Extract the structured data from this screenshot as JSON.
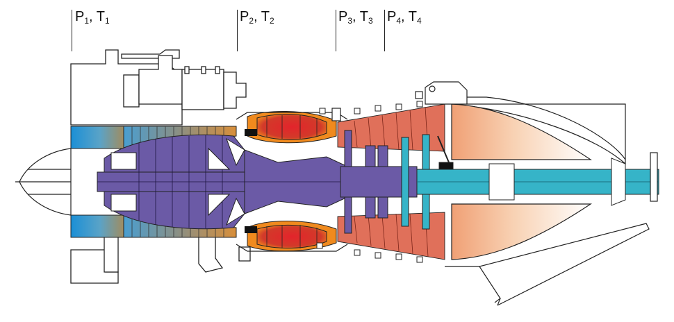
{
  "figure": {
    "stations": [
      {
        "p": "P",
        "p_sub": "1",
        "t": "T",
        "t_sub": "1",
        "sep": ", "
      },
      {
        "p": "P",
        "p_sub": "2",
        "t": "T",
        "t_sub": "2",
        "sep": ", "
      },
      {
        "p": "P",
        "p_sub": "3",
        "t": "T",
        "t_sub": "3",
        "sep": ", "
      },
      {
        "p": "P",
        "p_sub": "4",
        "t": "T",
        "t_sub": "4",
        "sep": ", "
      }
    ],
    "colors": {
      "inlet_blue": "#2e9ad6",
      "compressor_purple": "#6b5aa6",
      "combustor_red": "#d8262c",
      "combustor_orange": "#f08a1e",
      "turbine_salmon": "#e0705a",
      "shaft_cyan": "#36b4c8",
      "exhaust_peach": "#f6c5a3",
      "outline": "#222222"
    }
  }
}
